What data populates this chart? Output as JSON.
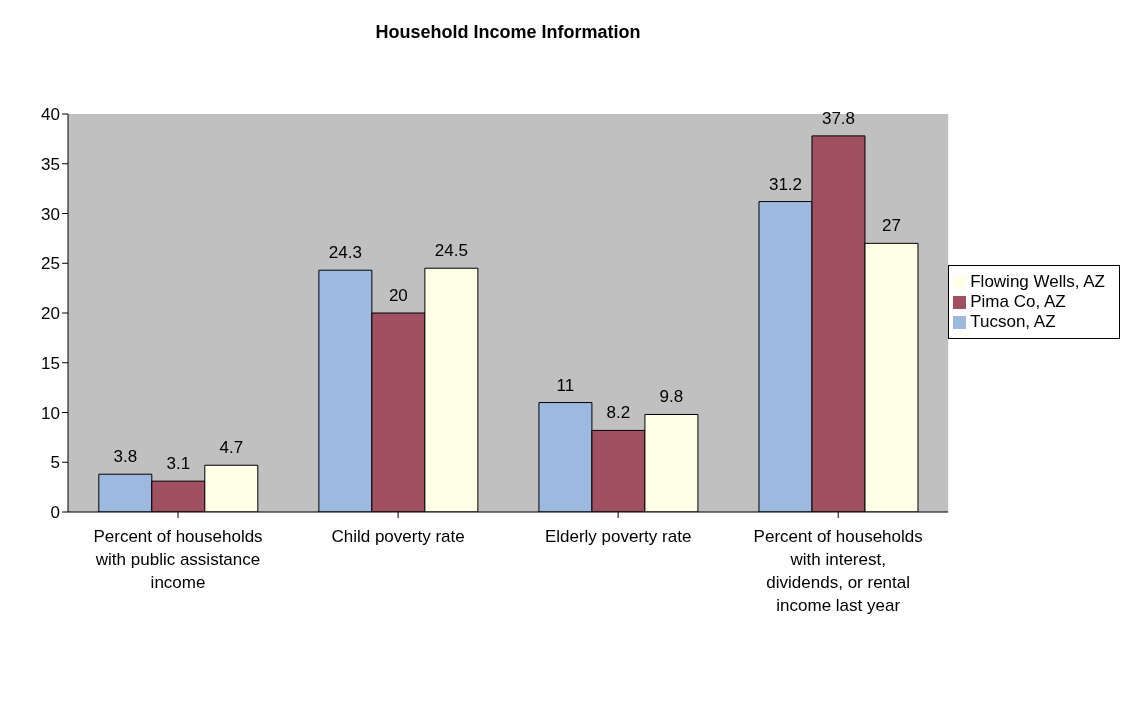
{
  "chart_data": {
    "type": "bar",
    "title": "Household Income Information",
    "categories": [
      "Percent of households with public assistance income",
      "Child poverty rate",
      "Elderly poverty rate",
      "Percent of households with interest, dividends, or rental income last year"
    ],
    "series": [
      {
        "name": "Tucson, AZ",
        "color": "#9db9e0",
        "values": [
          3.8,
          24.3,
          11,
          31.2
        ]
      },
      {
        "name": "Pima Co, AZ",
        "color": "#a05060",
        "values": [
          3.1,
          20,
          8.2,
          37.8
        ]
      },
      {
        "name": "Flowing Wells, AZ",
        "color": "#ffffe8",
        "values": [
          4.7,
          24.5,
          9.8,
          27
        ]
      }
    ],
    "ylim": [
      0,
      40
    ],
    "yticks": [
      0,
      5,
      10,
      15,
      20,
      25,
      30,
      35,
      40
    ],
    "grid": false,
    "legend": "right",
    "data_labels": true
  }
}
